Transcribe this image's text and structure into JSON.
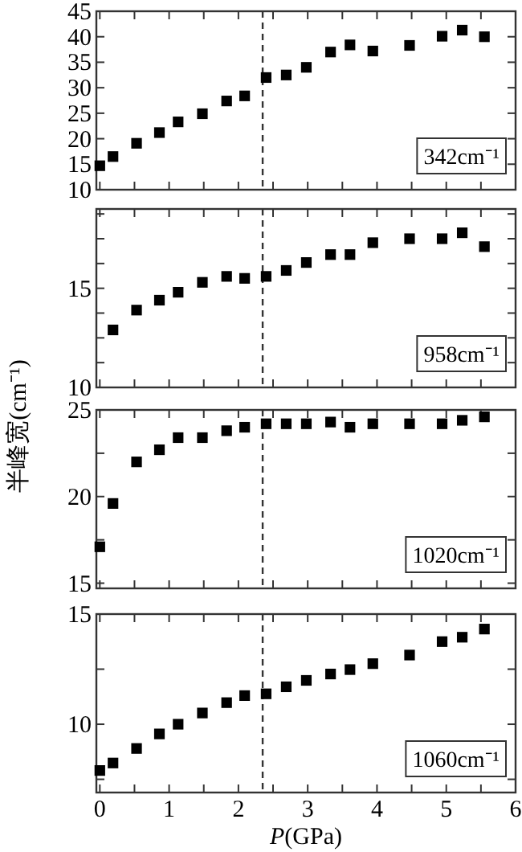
{
  "chart_data": [
    {
      "type": "scatter",
      "x": [
        0,
        0.19,
        0.53,
        0.86,
        1.13,
        1.48,
        1.83,
        2.09,
        2.4,
        2.69,
        2.98,
        3.33,
        3.61,
        3.94,
        4.47,
        4.94,
        5.23,
        5.55
      ],
      "series": [
        {
          "color": "#000000",
          "values": [
            14.7,
            16.5,
            19.1,
            21.2,
            23.3,
            24.9,
            27.4,
            28.4,
            32.0,
            32.5,
            34.0,
            37.0,
            38.4,
            37.2,
            38.3,
            40.1,
            41.3,
            40.0
          ]
        }
      ],
      "xlim": [
        -0.05,
        6
      ],
      "xticks": [
        0,
        {
          "value": 0.5,
          "label": null
        },
        1,
        {
          "value": 1.5,
          "label": null
        },
        2,
        {
          "value": 2.5,
          "label": null
        },
        3,
        {
          "value": 3.5,
          "label": null
        },
        4,
        {
          "value": 4.5,
          "label": null
        },
        5,
        {
          "value": 5.5,
          "label": null
        },
        6
      ],
      "ylim": [
        10,
        45
      ],
      "yticks": [
        10,
        15,
        20,
        25,
        30,
        35,
        40,
        45
      ],
      "tick_labels": "y",
      "marker": "square",
      "ref_lines": [
        {
          "axis": "x",
          "value": 2.35,
          "line_style": "dashed",
          "color": "#333333"
        }
      ],
      "annotations": [
        "342cm⁻¹"
      ]
    },
    {
      "type": "scatter",
      "x": [
        0.19,
        0.53,
        0.86,
        1.13,
        1.48,
        1.83,
        2.09,
        2.4,
        2.69,
        2.98,
        3.33,
        3.61,
        3.94,
        4.47,
        4.94,
        5.23,
        5.55
      ],
      "series": [
        {
          "color": "#000000",
          "values": [
            12.9,
            13.9,
            14.4,
            14.8,
            15.3,
            15.6,
            15.5,
            15.6,
            15.9,
            16.3,
            16.7,
            16.7,
            17.3,
            17.5,
            17.5,
            17.8,
            17.1
          ]
        }
      ],
      "xlim": [
        -0.05,
        6
      ],
      "xticks": [
        0,
        {
          "value": 0.5,
          "label": null
        },
        1,
        {
          "value": 1.5,
          "label": null
        },
        2,
        {
          "value": 2.5,
          "label": null
        },
        3,
        {
          "value": 3.5,
          "label": null
        },
        4,
        {
          "value": 4.5,
          "label": null
        },
        5,
        {
          "value": 5.5,
          "label": null
        },
        6
      ],
      "ylim": [
        10,
        19
      ],
      "yticks": [
        10,
        {
          "value": 11.25,
          "label": null
        },
        {
          "value": 12.5,
          "label": null
        },
        {
          "value": 13.75,
          "label": null
        },
        15,
        {
          "value": 16.25,
          "label": null
        },
        {
          "value": 17.5,
          "label": null
        },
        {
          "value": 18.75,
          "label": null
        }
      ],
      "tick_labels": "y",
      "marker": "square",
      "ylabel": "半峰宽(cm⁻¹)",
      "ref_lines": [
        {
          "axis": "x",
          "value": 2.35,
          "line_style": "dashed",
          "color": "#333333"
        }
      ],
      "annotations": [
        "958cm⁻¹"
      ]
    },
    {
      "type": "scatter",
      "x": [
        0,
        0.19,
        0.53,
        0.86,
        1.13,
        1.48,
        1.83,
        2.09,
        2.4,
        2.69,
        2.98,
        3.33,
        3.61,
        3.94,
        4.47,
        4.94,
        5.23,
        5.55
      ],
      "series": [
        {
          "color": "#000000",
          "values": [
            17.1,
            19.6,
            22.0,
            22.7,
            23.4,
            23.4,
            23.8,
            24.0,
            24.2,
            24.2,
            24.2,
            24.3,
            24.0,
            24.2,
            24.2,
            24.2,
            24.4,
            24.6
          ]
        }
      ],
      "xlim": [
        -0.05,
        6
      ],
      "xticks": [
        0,
        {
          "value": 0.5,
          "label": null
        },
        1,
        {
          "value": 1.5,
          "label": null
        },
        2,
        {
          "value": 2.5,
          "label": null
        },
        3,
        {
          "value": 3.5,
          "label": null
        },
        4,
        {
          "value": 4.5,
          "label": null
        },
        5,
        {
          "value": 5.5,
          "label": null
        },
        6
      ],
      "ylim": [
        14.7,
        25
      ],
      "yticks": [
        15,
        {
          "value": 17.5,
          "label": null
        },
        20,
        {
          "value": 22.5,
          "label": null
        },
        25
      ],
      "tick_labels": "y",
      "marker": "square",
      "ref_lines": [
        {
          "axis": "x",
          "value": 2.35,
          "line_style": "dashed",
          "color": "#333333"
        }
      ],
      "annotations": [
        "1020cm⁻¹"
      ]
    },
    {
      "type": "scatter",
      "x": [
        0,
        0.19,
        0.53,
        0.86,
        1.13,
        1.48,
        1.83,
        2.09,
        2.4,
        2.69,
        2.98,
        3.33,
        3.61,
        3.94,
        4.47,
        4.94,
        5.23,
        5.55
      ],
      "series": [
        {
          "color": "#000000",
          "values": [
            7.9,
            8.24,
            8.9,
            9.56,
            10.0,
            10.51,
            10.98,
            11.3,
            11.38,
            11.7,
            11.99,
            12.28,
            12.48,
            12.75,
            13.14,
            13.75,
            13.95,
            14.32
          ]
        }
      ],
      "xlim": [
        -0.05,
        6
      ],
      "xticks": [
        0,
        {
          "value": 0.5,
          "label": null
        },
        1,
        {
          "value": 1.5,
          "label": null
        },
        2,
        {
          "value": 2.5,
          "label": null
        },
        3,
        {
          "value": 3.5,
          "label": null
        },
        4,
        {
          "value": 4.5,
          "label": null
        },
        5,
        {
          "value": 5.5,
          "label": null
        },
        6
      ],
      "ylim": [
        6.9,
        15
      ],
      "yticks": [
        {
          "value": 7.5,
          "label": null
        },
        10,
        {
          "value": 12.5,
          "label": null
        },
        15
      ],
      "marker": "square",
      "xlabel": "P(GPa)",
      "ref_lines": [
        {
          "axis": "x",
          "value": 2.35,
          "line_style": "dashed",
          "color": "#333333"
        }
      ],
      "annotations": [
        "1060cm⁻¹"
      ]
    }
  ]
}
